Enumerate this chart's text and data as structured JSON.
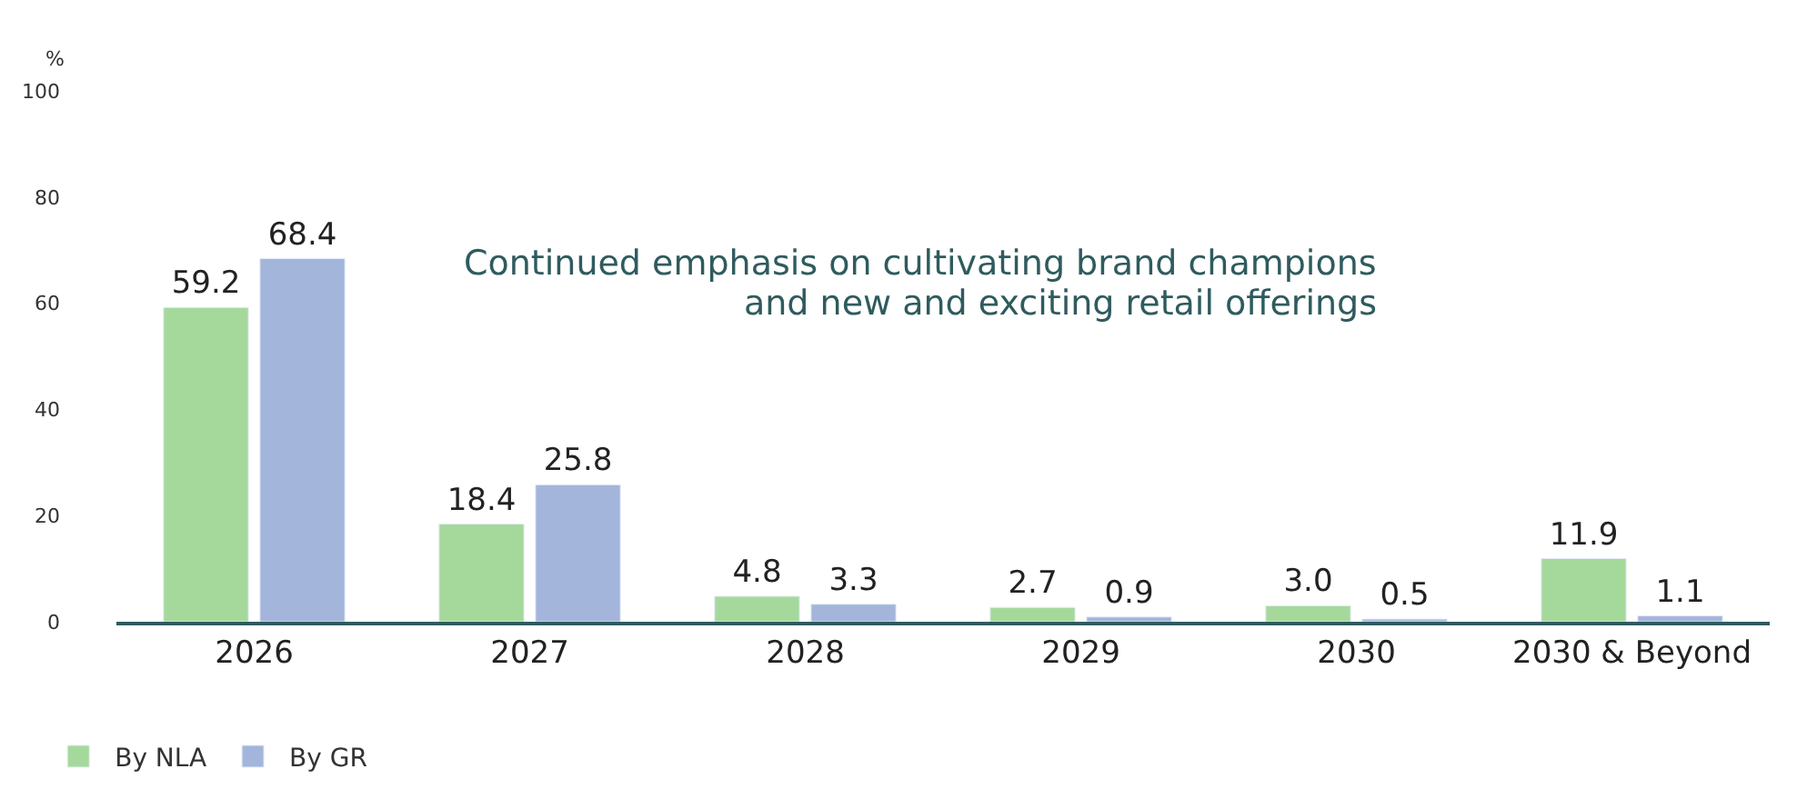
{
  "chart_data": {
    "type": "bar",
    "ylabel": "%",
    "categories": [
      "2026",
      "2027",
      "2028",
      "2029",
      "2030",
      "2030 & Beyond"
    ],
    "series": [
      {
        "name": "By NLA",
        "color": "#a5d99c",
        "values": [
          59.2,
          18.4,
          4.8,
          2.7,
          3.0,
          11.9
        ],
        "value_labels": [
          "59.2",
          "18.4",
          "4.8",
          "2.7",
          "3.0",
          "11.9"
        ]
      },
      {
        "name": "By GR",
        "color": "#a4b5dc",
        "values": [
          68.4,
          25.8,
          3.3,
          0.9,
          0.5,
          1.1
        ],
        "value_labels": [
          "68.4",
          "25.8",
          "3.3",
          "0.9",
          "0.5",
          "1.1"
        ]
      }
    ],
    "ylim": [
      0,
      100
    ],
    "yticks": [
      0,
      20,
      40,
      60,
      80,
      100
    ],
    "legend": "bottom left",
    "annotations": [
      "Continued emphasis on cultivating brand champions",
      "and new and exciting retail offerings"
    ]
  }
}
